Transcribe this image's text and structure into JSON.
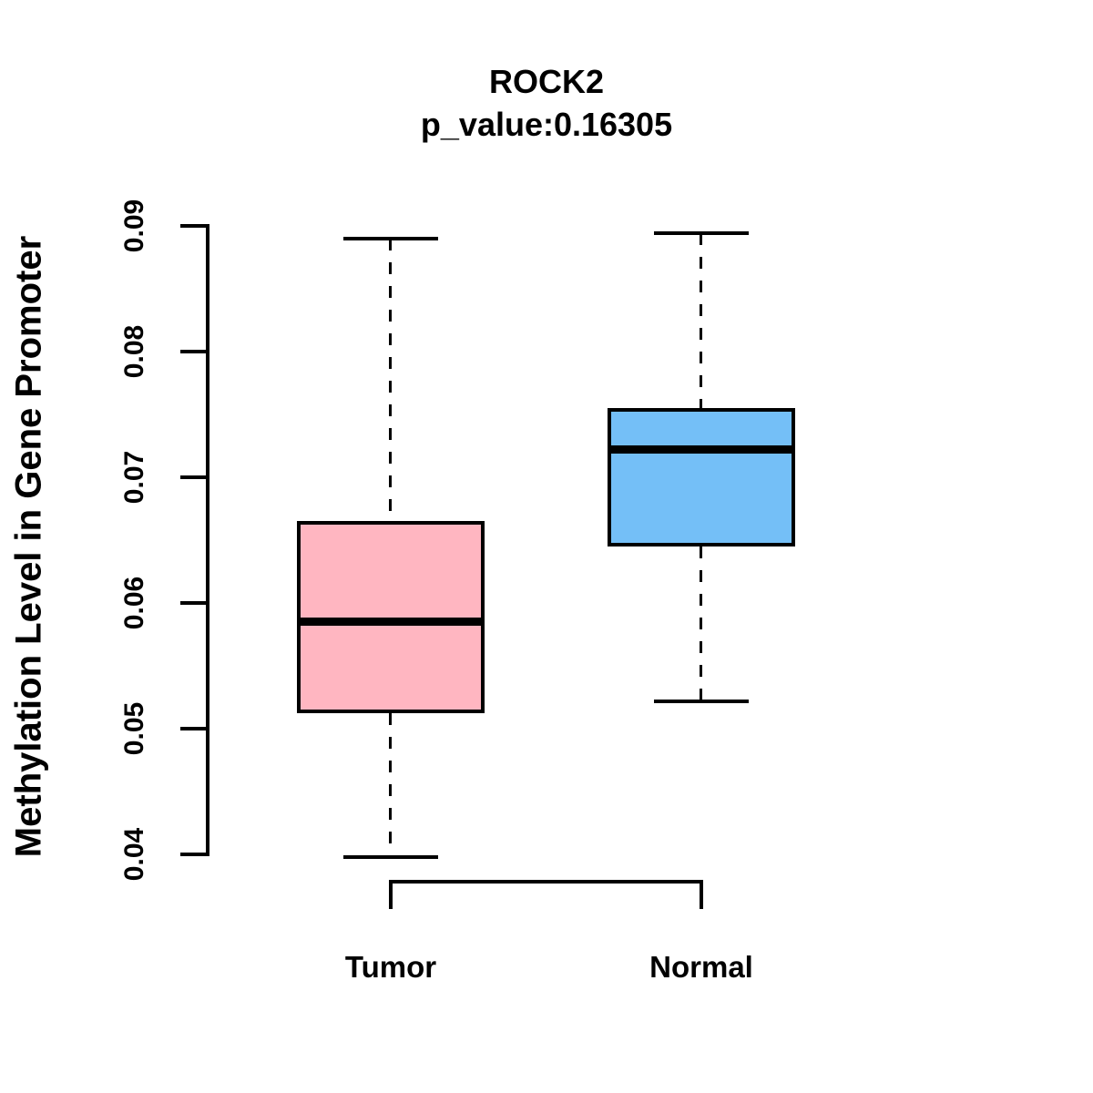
{
  "chart_data": {
    "type": "boxplot",
    "title": "ROCK2",
    "subtitle": "p_value:0.16305",
    "p_value": 0.16305,
    "ylabel": "Methylation Level in Gene Promoter",
    "ylim": [
      0.04,
      0.09
    ],
    "yticks": [
      0.04,
      0.05,
      0.06,
      0.07,
      0.08,
      0.09
    ],
    "grid": false,
    "legend": "none",
    "categories": [
      "Tumor",
      "Normal"
    ],
    "groups": [
      {
        "label": "Tumor",
        "fill_color": "#FFB6C1",
        "whisker_low": 0.0398,
        "q1": 0.0512,
        "median": 0.0585,
        "q3": 0.0665,
        "whisker_high": 0.089
      },
      {
        "label": "Normal",
        "fill_color": "#74BFF7",
        "whisker_low": 0.0522,
        "q1": 0.0645,
        "median": 0.0722,
        "q3": 0.0755,
        "whisker_high": 0.0894
      }
    ],
    "colors": {
      "box_border": "#000000",
      "median_line": "#000000",
      "axis": "#000000",
      "text": "#000000",
      "background": "#FFFFFF"
    }
  }
}
